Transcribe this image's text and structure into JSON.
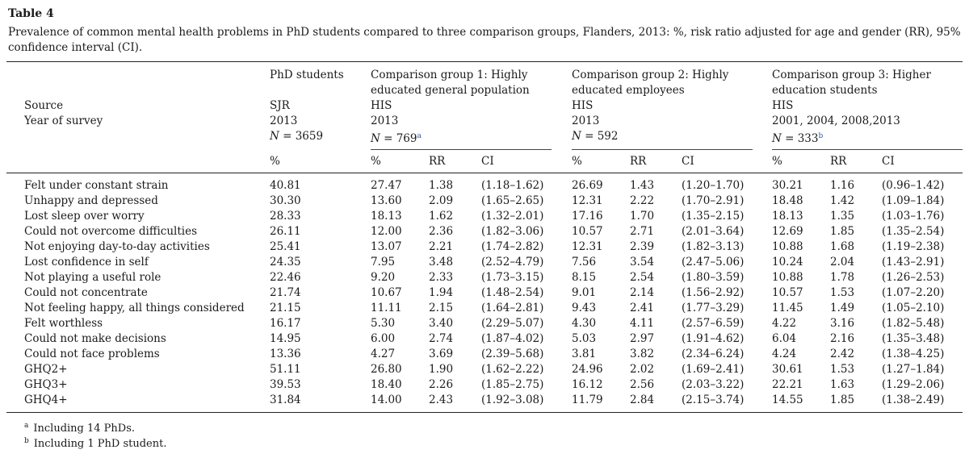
{
  "table_label": "Table 4",
  "caption": "Prevalence of common mental health problems in PhD students compared to three comparison groups, Flanders, 2013: %, risk ratio adjusted for age and gender (RR), 95% confidence interval (CI).",
  "header": {
    "row_labels": [
      "Source",
      "Year of survey"
    ],
    "groups": [
      {
        "name_lines": [
          "PhD students"
        ],
        "source": "SJR",
        "year": "2013",
        "n": "3659",
        "n_mark": ""
      },
      {
        "name_lines": [
          "Comparison group 1: Highly",
          "educated general population"
        ],
        "source": "HIS",
        "year": "2013",
        "n": "769",
        "n_mark": "a"
      },
      {
        "name_lines": [
          "Comparison group 2: Highly",
          "educated employees"
        ],
        "source": "HIS",
        "year": "2013",
        "n": "592",
        "n_mark": ""
      },
      {
        "name_lines": [
          "Comparison group 3: Higher",
          "education students"
        ],
        "source": "HIS",
        "year": "2001, 2004, 2008,2013",
        "n": "333",
        "n_mark": "b"
      }
    ],
    "n_prefix": "N",
    "n_equals": " = ",
    "col_labels": {
      "pct": "%",
      "rr": "RR",
      "ci": "CI"
    }
  },
  "rows": [
    {
      "label": "Felt under constant strain",
      "phd": "40.81",
      "g1": [
        "27.47",
        "1.38",
        "(1.18–1.62)"
      ],
      "g2": [
        "26.69",
        "1.43",
        "(1.20–1.70)"
      ],
      "g3": [
        "30.21",
        "1.16",
        "(0.96–1.42)"
      ]
    },
    {
      "label": "Unhappy and depressed",
      "phd": "30.30",
      "g1": [
        "13.60",
        "2.09",
        "(1.65–2.65)"
      ],
      "g2": [
        "12.31",
        "2.22",
        "(1.70–2.91)"
      ],
      "g3": [
        "18.48",
        "1.42",
        "(1.09–1.84)"
      ]
    },
    {
      "label": "Lost sleep over worry",
      "phd": "28.33",
      "g1": [
        "18.13",
        "1.62",
        "(1.32–2.01)"
      ],
      "g2": [
        "17.16",
        "1.70",
        "(1.35–2.15)"
      ],
      "g3": [
        "18.13",
        "1.35",
        "(1.03–1.76)"
      ]
    },
    {
      "label": "Could not overcome difficulties",
      "phd": "26.11",
      "g1": [
        "12.00",
        "2.36",
        "(1.82–3.06)"
      ],
      "g2": [
        "10.57",
        "2.71",
        "(2.01–3.64)"
      ],
      "g3": [
        "12.69",
        "1.85",
        "(1.35–2.54)"
      ]
    },
    {
      "label": "Not enjoying day-to-day activities",
      "phd": "25.41",
      "g1": [
        "13.07",
        "2.21",
        "(1.74–2.82)"
      ],
      "g2": [
        "12.31",
        "2.39",
        "(1.82–3.13)"
      ],
      "g3": [
        "10.88",
        "1.68",
        "(1.19–2.38)"
      ]
    },
    {
      "label": "Lost confidence in self",
      "phd": "24.35",
      "g1": [
        "7.95",
        "3.48",
        "(2.52–4.79)"
      ],
      "g2": [
        "7.56",
        "3.54",
        "(2.47–5.06)"
      ],
      "g3": [
        "10.24",
        "2.04",
        "(1.43–2.91)"
      ]
    },
    {
      "label": "Not playing a useful role",
      "phd": "22.46",
      "g1": [
        "9.20",
        "2.33",
        "(1.73–3.15)"
      ],
      "g2": [
        "8.15",
        "2.54",
        "(1.80–3.59)"
      ],
      "g3": [
        "10.88",
        "1.78",
        "(1.26–2.53)"
      ]
    },
    {
      "label": "Could not concentrate",
      "phd": "21.74",
      "g1": [
        "10.67",
        "1.94",
        "(1.48–2.54)"
      ],
      "g2": [
        "9.01",
        "2.14",
        "(1.56–2.92)"
      ],
      "g3": [
        "10.57",
        "1.53",
        "(1.07–2.20)"
      ]
    },
    {
      "label": "Not feeling happy, all things considered",
      "phd": "21.15",
      "g1": [
        "11.11",
        "2.15",
        "(1.64–2.81)"
      ],
      "g2": [
        "9.43",
        "2.41",
        "(1.77–3.29)"
      ],
      "g3": [
        "11.45",
        "1.49",
        "(1.05–2.10)"
      ]
    },
    {
      "label": "Felt worthless",
      "phd": "16.17",
      "g1": [
        "5.30",
        "3.40",
        "(2.29–5.07)"
      ],
      "g2": [
        "4.30",
        "4.11",
        "(2.57–6.59)"
      ],
      "g3": [
        "4.22",
        "3.16",
        "(1.82–5.48)"
      ]
    },
    {
      "label": "Could not make decisions",
      "phd": "14.95",
      "g1": [
        "6.00",
        "2.74",
        "(1.87–4.02)"
      ],
      "g2": [
        "5.03",
        "2.97",
        "(1.91–4.62)"
      ],
      "g3": [
        "6.04",
        "2.16",
        "(1.35–3.48)"
      ]
    },
    {
      "label": "Could not face problems",
      "phd": "13.36",
      "g1": [
        "4.27",
        "3.69",
        "(2.39–5.68)"
      ],
      "g2": [
        "3.81",
        "3.82",
        "(2.34–6.24)"
      ],
      "g3": [
        "4.24",
        "2.42",
        "(1.38–4.25)"
      ]
    },
    {
      "label": "GHQ2+",
      "phd": "51.11",
      "g1": [
        "26.80",
        "1.90",
        "(1.62–2.22)"
      ],
      "g2": [
        "24.96",
        "2.02",
        "(1.69–2.41)"
      ],
      "g3": [
        "30.61",
        "1.53",
        "(1.27–1.84)"
      ]
    },
    {
      "label": "GHQ3+",
      "phd": "39.53",
      "g1": [
        "18.40",
        "2.26",
        "(1.85–2.75)"
      ],
      "g2": [
        "16.12",
        "2.56",
        "(2.03–3.22)"
      ],
      "g3": [
        "22.21",
        "1.63",
        "(1.29–2.06)"
      ]
    },
    {
      "label": "GHQ4+",
      "phd": "31.84",
      "g1": [
        "14.00",
        "2.43",
        "(1.92–3.08)"
      ],
      "g2": [
        "11.79",
        "2.84",
        "(2.15–3.74)"
      ],
      "g3": [
        "14.55",
        "1.85",
        "(1.38–2.49)"
      ]
    }
  ],
  "footnotes": [
    {
      "mark": "a",
      "text": "Including 14 PhDs."
    },
    {
      "mark": "b",
      "text": "Including 1 PhD student."
    }
  ],
  "colors": {
    "link_superscript": "#2a5fa8",
    "text": "#1a1a1a"
  }
}
